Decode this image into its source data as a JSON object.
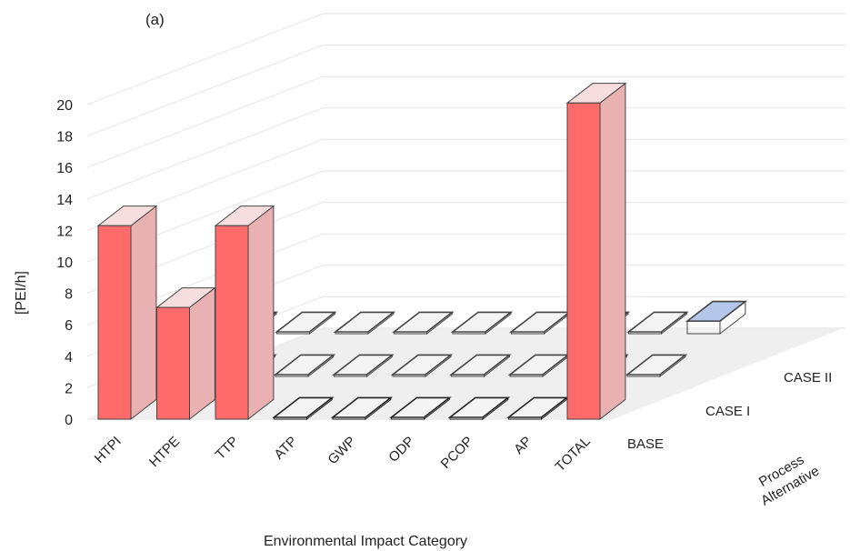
{
  "chart_data": {
    "type": "bar",
    "panel_label": "(a)",
    "ylabel": "[PEI/h]",
    "xlabel": "Environmental Impact Category",
    "zlabel": "Process Alternative",
    "ylim": [
      0,
      20
    ],
    "yticks": [
      0,
      2,
      4,
      6,
      8,
      10,
      12,
      14,
      16,
      18,
      20
    ],
    "categories": [
      "HTPI",
      "HTPE",
      "TTP",
      "ATP",
      "GWP",
      "ODP",
      "PCOP",
      "AP",
      "TOTAL"
    ],
    "grid": true,
    "series": [
      {
        "name": "BASE",
        "color": "#ff6b6b",
        "values": [
          12.3,
          7.1,
          12.3,
          0.05,
          0.05,
          0.05,
          0.05,
          0.05,
          20.1
        ]
      },
      {
        "name": "CASE I",
        "color": "#e8e8e8",
        "values": [
          0.05,
          0.05,
          0.05,
          0.05,
          0.05,
          0.05,
          0.05,
          0.05,
          0.05
        ]
      },
      {
        "name": "CASE II",
        "color": "#7f9fd6",
        "values": [
          0.05,
          0.05,
          0.05,
          0.05,
          0.05,
          0.05,
          0.05,
          0.05,
          0.8
        ]
      }
    ]
  }
}
